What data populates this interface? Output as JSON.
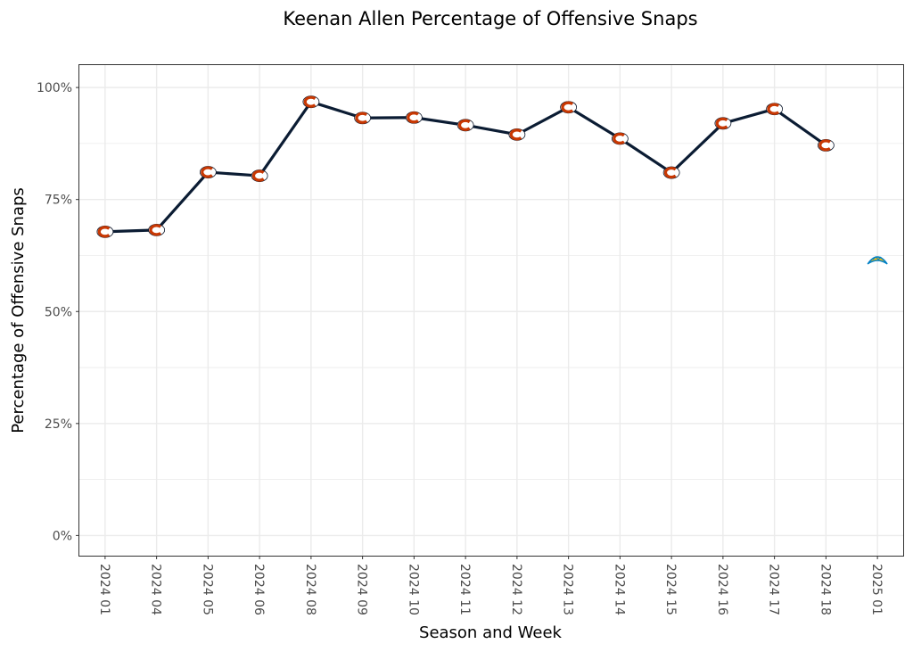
{
  "chart_data": {
    "type": "line",
    "title": "Keenan Allen Percentage of Offensive Snaps",
    "xlabel": "Season and Week",
    "ylabel": "Percentage of Offensive Snaps",
    "categories": [
      "2024 01",
      "2024 04",
      "2024 05",
      "2024 06",
      "2024 08",
      "2024 09",
      "2024 10",
      "2024 11",
      "2024 12",
      "2024 13",
      "2024 14",
      "2024 15",
      "2024 16",
      "2024 17",
      "2024 18",
      "2025 01"
    ],
    "series": [
      {
        "values": [
          67.8,
          68.2,
          81.1,
          80.3,
          96.8,
          93.2,
          93.3,
          91.6,
          89.5,
          95.6,
          88.6,
          81.0,
          92.0,
          95.2,
          87.1,
          null
        ],
        "color": "#0b1c33",
        "marker_icon": "bears-c-logo-icon"
      },
      {
        "values": [
          null,
          null,
          null,
          null,
          null,
          null,
          null,
          null,
          null,
          null,
          null,
          null,
          null,
          null,
          null,
          61.4
        ],
        "marker_icon": "chargers-bolt-logo-icon"
      }
    ],
    "ylim": [
      -4.5,
      105
    ],
    "yticks": [
      0,
      25,
      50,
      75,
      100
    ],
    "ytick_labels": [
      "0%",
      "25%",
      "50%",
      "75%",
      "100%"
    ],
    "grid": true,
    "colors": {
      "line": "#0b1c33",
      "bears_orange": "#c83803",
      "bears_navy": "#0b162a",
      "chargers_blue": "#0080c6",
      "chargers_gold": "#ffc20e",
      "grid": "#ebebeb",
      "panel_border": "#333333"
    }
  }
}
